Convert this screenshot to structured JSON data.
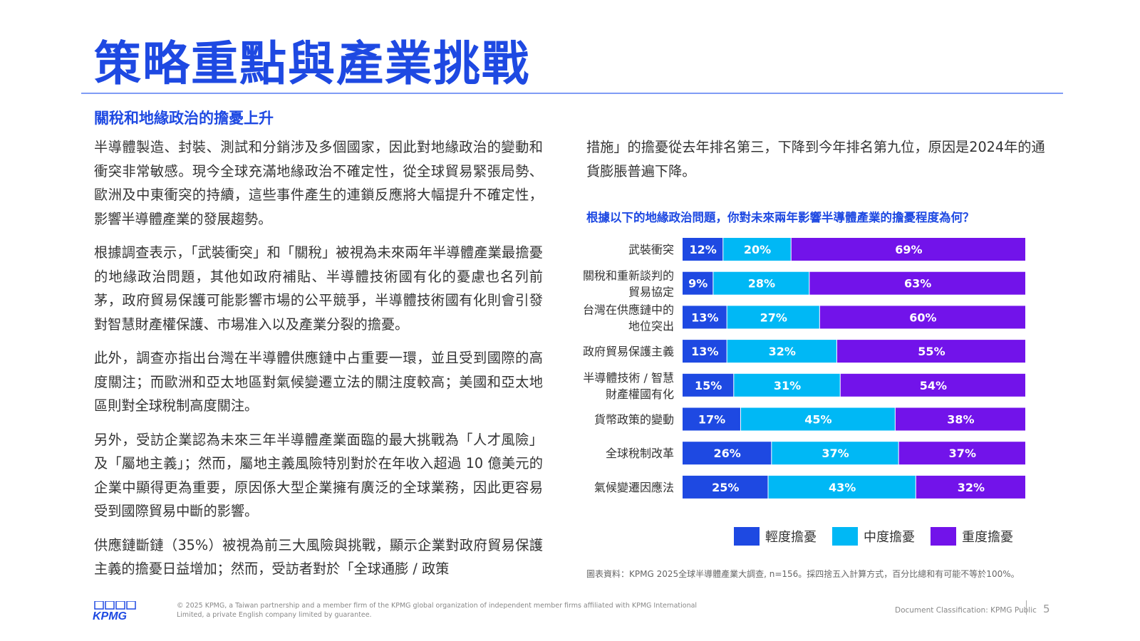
{
  "page": {
    "title": "策略重點與產業挑戰",
    "subtitle": "關稅和地緣政治的擔憂上升",
    "left_paragraphs": [
      "半導體製造、封裝、測試和分銷涉及多個國家，因此對地緣政治的變動和衝突非常敏感。現今全球充滿地緣政治不確定性，從全球貿易緊張局勢、歐洲及中東衝突的持續，這些事件產生的連鎖反應將大幅提升不確定性，影響半導體產業的發展趨勢。",
      "根據調查表示，「武裝衝突」和「關稅」被視為未來兩年半導體產業最擔憂的地緣政治問題，其他如政府補貼、半導體技術國有化的憂慮也名列前茅，政府貿易保護可能影響市場的公平競爭，半導體技術國有化則會引發對智慧財產權保護、市場准入以及產業分裂的擔憂。",
      "此外，調查亦指出台灣在半導體供應鏈中占重要一環，並且受到國際的高度關注；而歐洲和亞太地區對氣候變遷立法的關注度較高；美國和亞太地區則對全球稅制高度關注。",
      "另外，受訪企業認為未來三年半導體產業面臨的最大挑戰為「人才風險」及「屬地主義」；然而，屬地主義風險特別對於在年收入超過 10 億美元的企業中顯得更為重要，原因係大型企業擁有廣泛的全球業務，因此更容易受到國際貿易中斷的影響。",
      "供應鏈斷鏈（35%）被視為前三大風險與挑戰，顯示企業對政府貿易保護主義的擔憂日益增加；然而，受訪者對於「全球通膨 / 政策"
    ],
    "right_paragraph": "措施」的擔憂從去年排名第三，下降到今年排名第九位，原因是2024年的通貨膨脹普遍下降。",
    "chart_question": "根據以下的地緣政治問題，你對未來兩年影響半導體產業的擔憂程度為何？",
    "source_note": "圖表資料：KPMG 2025全球半導體產業大調查, n=156。採四捨五入計算方式，百分比總和有可能不等於100%。",
    "footer": {
      "logo_text": "KPMG",
      "copyright": "© 2025 KPMG, a Taiwan partnership and a member firm of the KPMG global organization of independent member firms affiliated with KPMG International Limited, a private English company limited by guarantee.",
      "classification": "Document Classification: KPMG Public",
      "page_number": "5"
    }
  },
  "colors": {
    "brand_blue": "#1e49e2",
    "light": "#1e49e2",
    "medium": "#00b8f5",
    "heavy": "#7213ea"
  },
  "chart_data": {
    "type": "bar",
    "orientation": "horizontal",
    "stacked": true,
    "categories": [
      [
        "武裝衝突"
      ],
      [
        "關稅和重新談判的",
        "貿易協定"
      ],
      [
        "台灣在供應鏈中的",
        "地位突出"
      ],
      [
        "政府貿易保護主義"
      ],
      [
        "半導體技術 / 智慧",
        "財產權國有化"
      ],
      [
        "貨幣政策的變動"
      ],
      [
        "全球稅制改革"
      ],
      [
        "氣候變遷因應法"
      ]
    ],
    "series": [
      {
        "name": "輕度擔憂",
        "color": "#1e49e2",
        "values": [
          12,
          9,
          13,
          13,
          15,
          17,
          26,
          25
        ]
      },
      {
        "name": "中度擔憂",
        "color": "#00b8f5",
        "values": [
          20,
          28,
          27,
          32,
          31,
          45,
          37,
          43
        ]
      },
      {
        "name": "重度擔憂",
        "color": "#7213ea",
        "values": [
          69,
          63,
          60,
          55,
          54,
          38,
          37,
          32
        ]
      }
    ],
    "value_suffix": "%",
    "legend_position": "bottom",
    "grid": false
  }
}
